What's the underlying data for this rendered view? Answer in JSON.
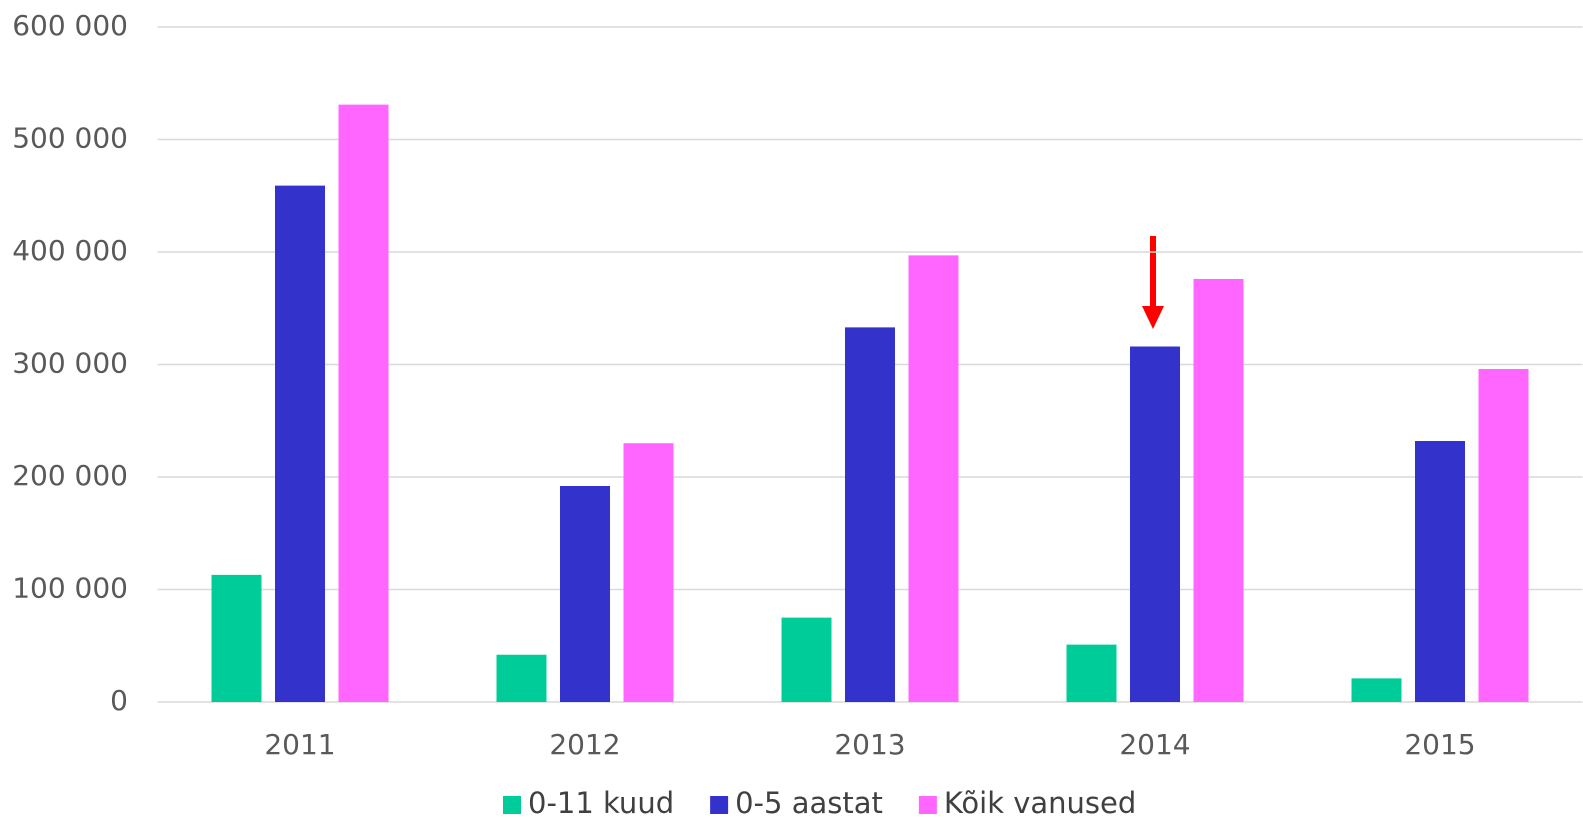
{
  "chart_data": {
    "type": "bar",
    "categories": [
      "2011",
      "2012",
      "2013",
      "2014",
      "2015"
    ],
    "series": [
      {
        "name": "0-11 kuud",
        "color": "#00cc99",
        "values": [
          113000,
          42000,
          75000,
          51000,
          21000
        ]
      },
      {
        "name": "0-5 aastat",
        "color": "#3333cc",
        "values": [
          459000,
          192000,
          333000,
          316000,
          232000
        ]
      },
      {
        "name": "Kõik vanused",
        "color": "#ff66ff",
        "values": [
          531000,
          230000,
          397000,
          376000,
          296000
        ]
      }
    ],
    "ylim": [
      0,
      600000
    ],
    "yticks": [
      0,
      {
        "value": 100000,
        "label": "100 000"
      },
      {
        "value": 200000,
        "label": "200 000"
      },
      {
        "value": 300000,
        "label": "300 000"
      },
      {
        "value": 400000,
        "label": "400 000"
      },
      {
        "value": 500000,
        "label": "500 000"
      },
      {
        "value": 600000,
        "label": "600 000"
      }
    ],
    "grid": true,
    "legend": "bottom"
  }
}
